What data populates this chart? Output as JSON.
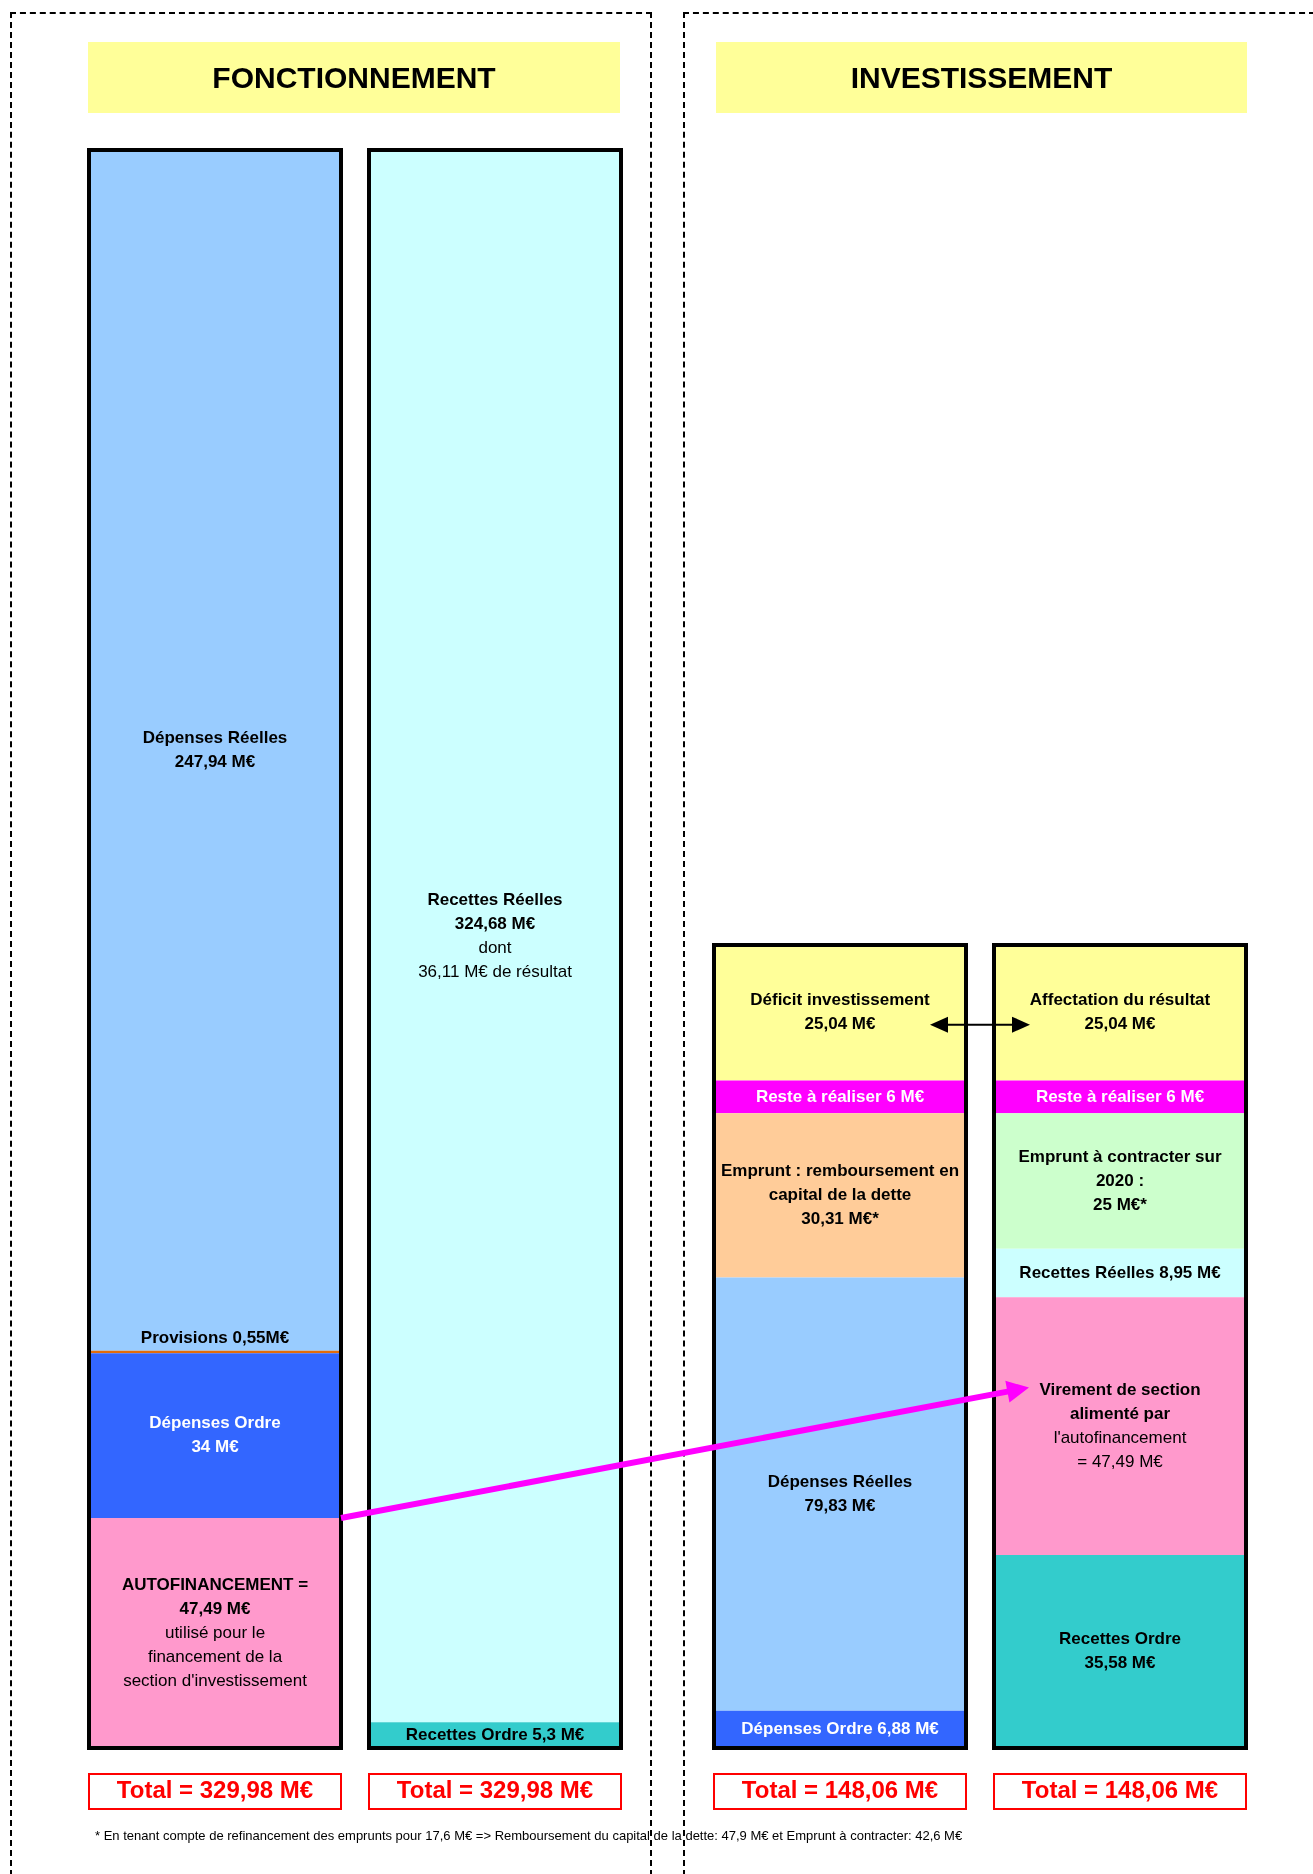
{
  "chart_data": [
    {
      "type": "bar",
      "stacked": true,
      "title": "FONCTIONNEMENT",
      "categories": [
        null,
        null
      ],
      "ylim": [
        0,
        329.98
      ],
      "tick_labels": false,
      "grid": false,
      "legend": false,
      "totals": [
        "Total = 329,98 M€",
        "Total = 329,98 M€"
      ],
      "annotations": [
        "* En tenant compte de refinancement des emprunts pour 17,6 M€ => Remboursement du capital de la dette: 47,9 M€ et Emprunt à contracter: 42,6 M€"
      ],
      "series": [
        {
          "name": "AUTOFINANCEMENT =",
          "color": "#ff99cc",
          "values": [
            47.49,
            null
          ],
          "value_labels": [
            "47,49 M€\nutilisé pour le\nfinancement de la\nsection d'investissement",
            null
          ]
        },
        {
          "name": "Dépenses Ordre",
          "color": "#3366ff",
          "values": [
            34,
            null
          ],
          "value_labels": [
            "34 M€",
            null
          ]
        },
        {
          "name": "Provisions",
          "color": "#e46c0a",
          "values": [
            0.55,
            null
          ],
          "value_labels": [
            "0,55M€",
            null
          ]
        },
        {
          "name": "Dépenses Réelles",
          "color": "#99ccff",
          "values": [
            247.94,
            null
          ],
          "value_labels": [
            "247,94 M€",
            null
          ]
        },
        {
          "name": "Recettes Ordre",
          "color": "#33cccc",
          "values": [
            null,
            5.3
          ],
          "value_labels": [
            null,
            "5,3 M€"
          ]
        },
        {
          "name": "Recettes Réelles",
          "color": "#ccffff",
          "values": [
            null,
            324.68
          ],
          "value_labels": [
            null,
            "324,68 M€\ndont\n36,11 M€ de résultat"
          ]
        }
      ]
    },
    {
      "type": "bar",
      "stacked": true,
      "title": "INVESTISSEMENT",
      "categories": [
        null,
        null
      ],
      "tick_labels": false,
      "grid": false,
      "legend": false,
      "totals": [
        "Total = 148,06 M€",
        "Total = 148,06 M€"
      ],
      "series": [
        {
          "name": "Dépenses Ordre",
          "color": "#3366ff",
          "values": [
            6.88,
            null
          ],
          "value_labels": [
            "6,88 M€",
            null
          ]
        },
        {
          "name": "Dépenses Réelles",
          "color": "#99ccff",
          "values": [
            79.83,
            null
          ],
          "value_labels": [
            "79,83 M€",
            null
          ]
        },
        {
          "name": "Emprunt : remboursement en capital de la dette",
          "color": "#ffcc99",
          "values": [
            30.31,
            null
          ],
          "value_labels": [
            "30,31 M€*",
            null
          ]
        },
        {
          "name": "Reste à réaliser",
          "color": "#ff00ff",
          "values": [
            6,
            null
          ],
          "value_labels": [
            "6 M€",
            null
          ]
        },
        {
          "name": "Déficit investissement",
          "color": "#ffff99",
          "values": [
            25.04,
            null
          ],
          "value_labels": [
            "25,04 M€",
            null
          ]
        },
        {
          "name": "Recettes Ordre",
          "color": "#33cccc",
          "values": [
            null,
            35.58
          ],
          "value_labels": [
            null,
            "35,58 M€"
          ]
        },
        {
          "name": "Virement de section",
          "color": "#ff99cc",
          "values": [
            null,
            47.49
          ],
          "value_labels": [
            null,
            "alimenté par\nl'autofinancement\n= 47,49 M€"
          ]
        },
        {
          "name": "Recettes Réelles",
          "color": "#ccffff",
          "values": [
            null,
            8.95
          ],
          "value_labels": [
            null,
            "8,95 M€"
          ]
        },
        {
          "name": "Emprunt à contracter sur 2020 :",
          "color": "#ccffcc",
          "values": [
            null,
            25
          ],
          "value_labels": [
            null,
            "25 M€*"
          ]
        },
        {
          "name": "Reste à réaliser",
          "color": "#ff00ff",
          "values": [
            null,
            6
          ],
          "value_labels": [
            null,
            "6 M€"
          ]
        },
        {
          "name": "Affectation du résultat",
          "color": "#ffff99",
          "values": [
            null,
            25.04
          ],
          "value_labels": [
            null,
            "25,04 M€"
          ]
        }
      ]
    }
  ]
}
